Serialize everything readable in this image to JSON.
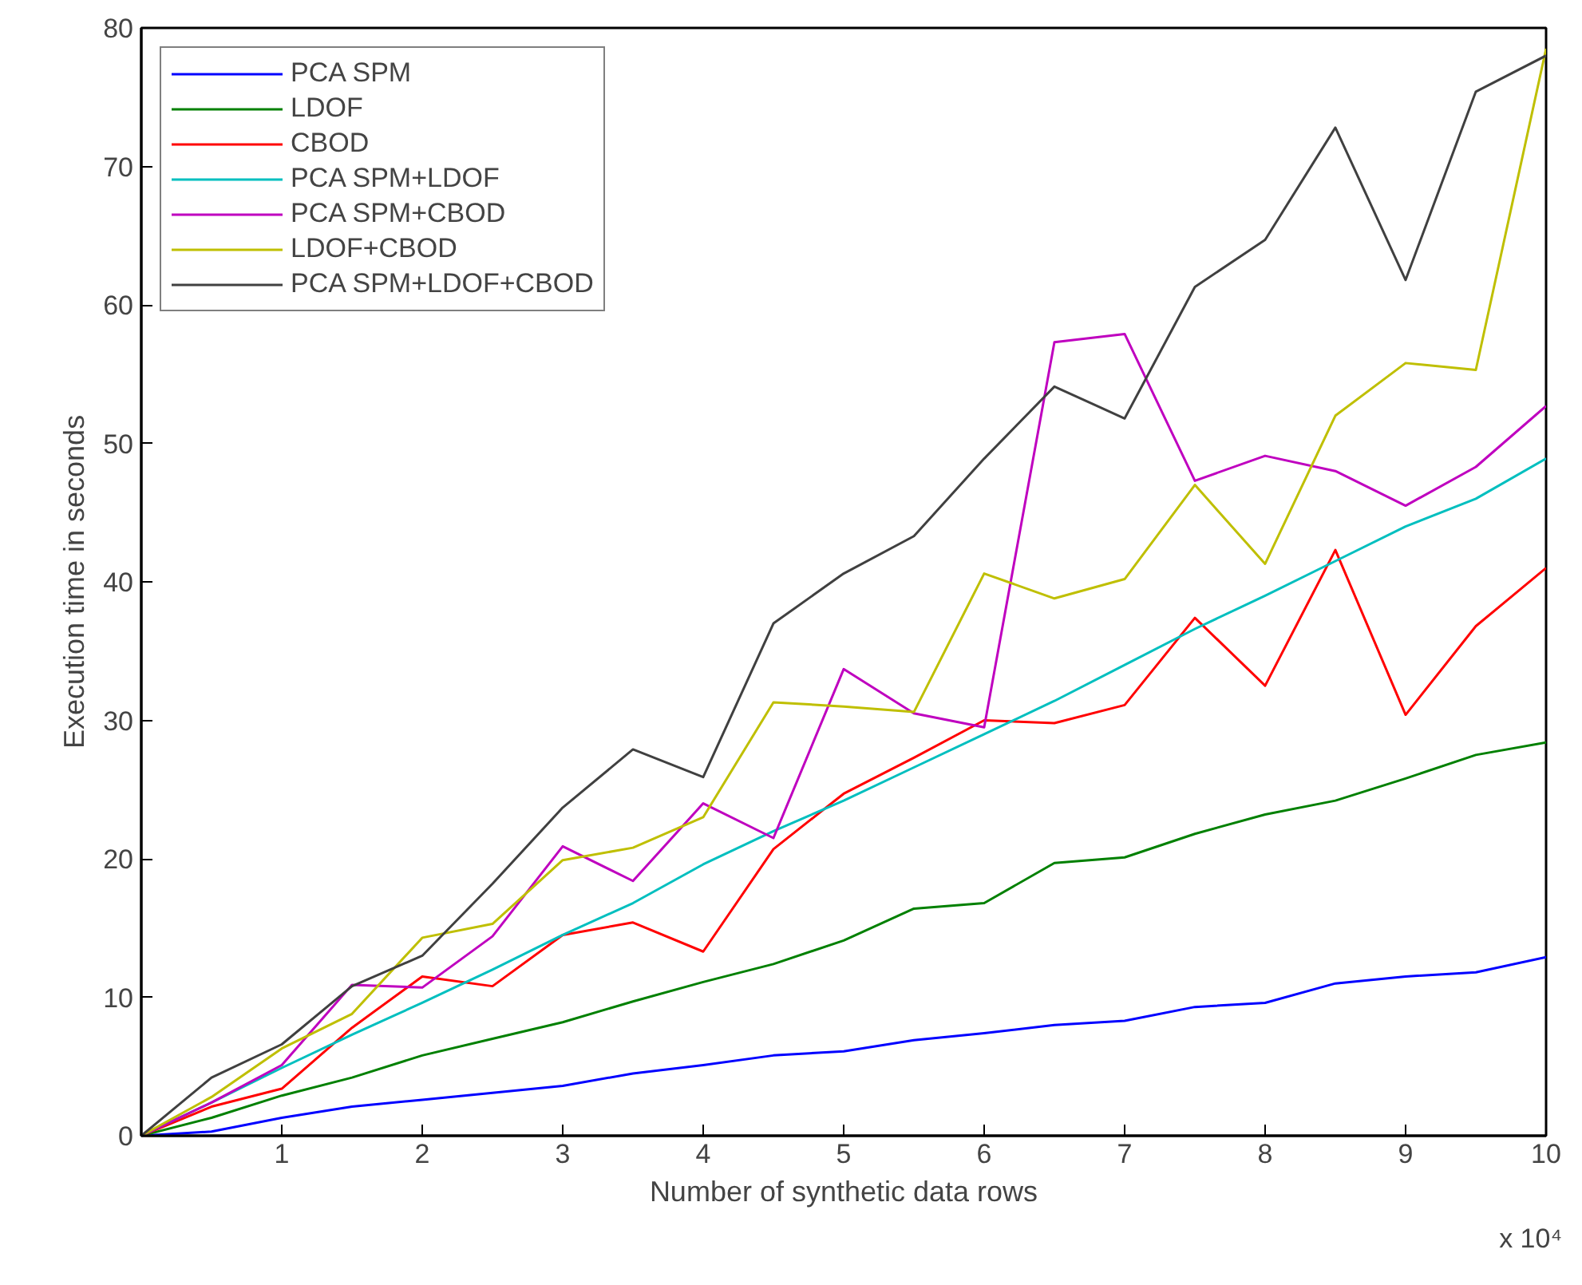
{
  "chart_data": {
    "type": "line",
    "xlabel": "Number of synthetic data rows",
    "ylabel": "Execution time in seconds",
    "annotations": [
      "x 10⁴"
    ],
    "x": [
      0,
      0.5,
      1,
      1.5,
      2,
      2.5,
      3,
      3.5,
      4,
      4.5,
      5,
      5.5,
      6,
      6.5,
      7,
      7.5,
      8,
      8.5,
      9,
      9.5,
      10
    ],
    "xlim": [
      0,
      10
    ],
    "xticks": [
      1,
      2,
      3,
      4,
      5,
      6,
      7,
      8,
      9,
      10
    ],
    "ylim": [
      0,
      80
    ],
    "yticks": [
      0,
      10,
      20,
      30,
      40,
      50,
      60,
      70,
      80
    ],
    "grid": false,
    "legend": "top left",
    "line_style": "solid",
    "series": [
      {
        "name": "PCA SPM",
        "color": "#0000ff",
        "values": [
          0,
          0.3,
          1.3,
          2.1,
          2.6,
          3.1,
          3.6,
          4.5,
          5.1,
          5.8,
          6.1,
          6.9,
          7.4,
          8,
          8.3,
          9.3,
          9.6,
          11,
          11.5,
          11.8,
          12.9
        ]
      },
      {
        "name": "LDOF",
        "color": "#008000",
        "values": [
          0,
          1.3,
          2.9,
          4.2,
          5.8,
          7,
          8.2,
          9.7,
          11.1,
          12.4,
          14.1,
          16.4,
          16.8,
          19.7,
          20.1,
          21.8,
          23.2,
          24.2,
          25.8,
          27.5,
          28.4
        ]
      },
      {
        "name": "CBOD",
        "color": "#ff0000",
        "values": [
          0,
          2.1,
          3.4,
          7.8,
          11.5,
          10.8,
          14.5,
          15.4,
          13.3,
          20.7,
          24.7,
          27.3,
          30,
          29.8,
          31.1,
          37.4,
          32.5,
          42.3,
          30.4,
          36.8,
          41
        ]
      },
      {
        "name": "PCA SPM+LDOF",
        "color": "#00bfbf",
        "values": [
          0,
          2.4,
          4.9,
          7.3,
          9.6,
          12,
          14.5,
          16.8,
          19.6,
          22,
          24.2,
          26.6,
          29,
          31.4,
          34,
          36.6,
          39,
          41.5,
          44,
          46,
          48.9
        ]
      },
      {
        "name": "PCA SPM+CBOD",
        "color": "#bf00bf",
        "values": [
          0,
          2.4,
          5.1,
          10.9,
          10.7,
          14.4,
          20.9,
          18.4,
          24,
          21.5,
          33.7,
          30.5,
          29.5,
          57.3,
          57.9,
          47.3,
          49.1,
          48,
          45.5,
          48.3,
          52.7
        ]
      },
      {
        "name": "LDOF+CBOD",
        "color": "#bfbf00",
        "values": [
          0,
          2.8,
          6.3,
          8.8,
          14.3,
          15.3,
          19.9,
          20.8,
          23,
          31.3,
          31,
          30.6,
          40.6,
          38.8,
          40.2,
          47,
          41.3,
          52,
          55.8,
          55.3,
          78.5
        ]
      },
      {
        "name": "PCA SPM+LDOF+CBOD",
        "color": "#404040",
        "values": [
          0,
          4.2,
          6.6,
          10.8,
          13,
          18.2,
          23.7,
          27.9,
          25.9,
          37,
          40.6,
          43.3,
          48.9,
          54.1,
          51.8,
          61.3,
          64.7,
          72.8,
          61.8,
          75.4,
          78
        ]
      }
    ]
  }
}
